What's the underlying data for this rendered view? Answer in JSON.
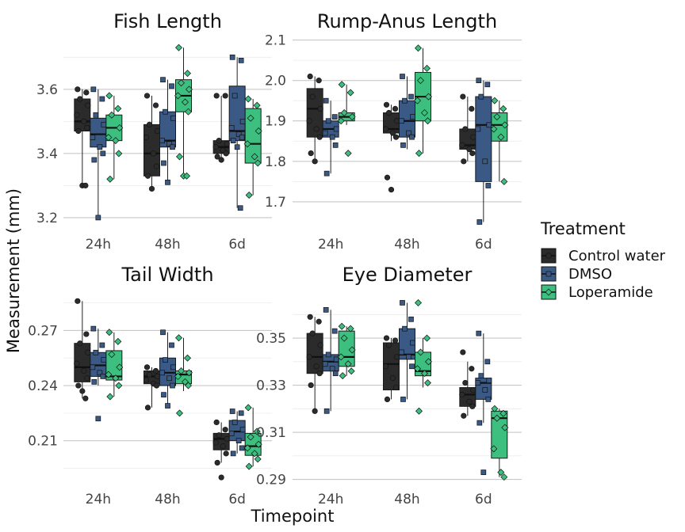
{
  "chart_data": {
    "type": "boxplot",
    "xlabel": "Timepoint",
    "ylabel": "Measurement (mm)",
    "legend": {
      "title": "Treatment",
      "position": "right",
      "entries": [
        {
          "name": "Control water",
          "color": "#2b2b2b",
          "marker": "circle"
        },
        {
          "name": "DMSO",
          "color": "#3a5a85",
          "marker": "square"
        },
        {
          "name": "Loperamide",
          "color": "#3dbf80",
          "marker": "diamond"
        }
      ]
    },
    "categories": [
      "24h",
      "48h",
      "6d"
    ],
    "panels": [
      {
        "title": "Fish Length",
        "ylim": [
          3.18,
          3.76
        ],
        "yticks": [
          3.2,
          3.4,
          3.6
        ],
        "ytick_labels": [
          "3.2",
          "3.4",
          "3.6"
        ],
        "minor_yticks": [
          3.3,
          3.5,
          3.7
        ],
        "groups": [
          {
            "category": "24h",
            "treatment": "Control water",
            "min": 3.3,
            "q1": 3.47,
            "median": 3.5,
            "q3": 3.57,
            "max": 3.6,
            "points": [
              3.6,
              3.59,
              3.57,
              3.55,
              3.52,
              3.5,
              3.48,
              3.47,
              3.3,
              3.3
            ]
          },
          {
            "category": "24h",
            "treatment": "DMSO",
            "min": 3.2,
            "q1": 3.42,
            "median": 3.46,
            "q3": 3.51,
            "max": 3.6,
            "points": [
              3.6,
              3.57,
              3.52,
              3.49,
              3.45,
              3.42,
              3.4,
              3.38,
              3.2
            ]
          },
          {
            "category": "24h",
            "treatment": "Loperamide",
            "min": 3.32,
            "q1": 3.44,
            "median": 3.48,
            "q3": 3.52,
            "max": 3.58,
            "points": [
              3.58,
              3.54,
              3.52,
              3.48,
              3.45,
              3.44,
              3.4,
              3.32
            ]
          },
          {
            "category": "48h",
            "treatment": "Control water",
            "min": 3.29,
            "q1": 3.33,
            "median": 3.4,
            "q3": 3.49,
            "max": 3.58,
            "points": [
              3.58,
              3.55,
              3.49,
              3.47,
              3.45,
              3.4,
              3.36,
              3.33,
              3.29
            ]
          },
          {
            "category": "48h",
            "treatment": "DMSO",
            "min": 3.31,
            "q1": 3.42,
            "median": 3.44,
            "q3": 3.53,
            "max": 3.63,
            "points": [
              3.63,
              3.61,
              3.53,
              3.51,
              3.44,
              3.43,
              3.42,
              3.37,
              3.31
            ]
          },
          {
            "category": "48h",
            "treatment": "Loperamide",
            "min": 3.33,
            "q1": 3.53,
            "median": 3.58,
            "q3": 3.63,
            "max": 3.73,
            "points": [
              3.73,
              3.65,
              3.62,
              3.6,
              3.58,
              3.56,
              3.53,
              3.39,
              3.33,
              3.33
            ]
          },
          {
            "category": "6d",
            "treatment": "Control water",
            "min": 3.38,
            "q1": 3.4,
            "median": 3.42,
            "q3": 3.44,
            "max": 3.58,
            "points": [
              3.58,
              3.58,
              3.44,
              3.43,
              3.42,
              3.41,
              3.4,
              3.39,
              3.38
            ]
          },
          {
            "category": "6d",
            "treatment": "DMSO",
            "min": 3.23,
            "q1": 3.44,
            "median": 3.47,
            "q3": 3.61,
            "max": 3.7,
            "points": [
              3.7,
              3.69,
              3.58,
              3.5,
              3.48,
              3.46,
              3.45,
              3.44,
              3.42,
              3.23
            ]
          },
          {
            "category": "6d",
            "treatment": "Loperamide",
            "min": 3.27,
            "q1": 3.37,
            "median": 3.43,
            "q3": 3.54,
            "max": 3.57,
            "points": [
              3.57,
              3.55,
              3.51,
              3.47,
              3.43,
              3.39,
              3.37,
              3.27
            ]
          }
        ]
      },
      {
        "title": "Rump-Anus Length",
        "ylim": [
          1.645,
          2.105
        ],
        "yticks": [
          1.7,
          1.8,
          1.9,
          2.0,
          2.1
        ],
        "ytick_labels": [
          "1.7",
          "1.8",
          "1.9",
          "2.0",
          "2.1"
        ],
        "minor_yticks": [
          1.75,
          1.85,
          1.95,
          2.05
        ],
        "groups": [
          {
            "category": "24h",
            "treatment": "Control water",
            "min": 1.8,
            "q1": 1.86,
            "median": 1.93,
            "q3": 1.98,
            "max": 2.01,
            "points": [
              2.01,
              2.0,
              1.96,
              1.93,
              1.9,
              1.88,
              1.86,
              1.82,
              1.8
            ]
          },
          {
            "category": "24h",
            "treatment": "DMSO",
            "min": 1.77,
            "q1": 1.86,
            "median": 1.88,
            "q3": 1.9,
            "max": 1.95,
            "points": [
              1.95,
              1.91,
              1.9,
              1.88,
              1.87,
              1.86,
              1.84,
              1.77
            ]
          },
          {
            "category": "24h",
            "treatment": "Loperamide",
            "min": 1.89,
            "q1": 1.9,
            "median": 1.91,
            "q3": 1.92,
            "max": 1.99,
            "points": [
              1.99,
              1.97,
              1.92,
              1.91,
              1.9,
              1.82
            ]
          },
          {
            "category": "48h",
            "treatment": "Control water",
            "min": 1.85,
            "q1": 1.87,
            "median": 1.88,
            "q3": 1.92,
            "max": 1.94,
            "points": [
              1.94,
              1.93,
              1.92,
              1.9,
              1.88,
              1.87,
              1.86,
              1.76,
              1.73
            ]
          },
          {
            "category": "48h",
            "treatment": "DMSO",
            "min": 1.83,
            "q1": 1.86,
            "median": 1.9,
            "q3": 1.95,
            "max": 2.01,
            "points": [
              2.01,
              1.96,
              1.95,
              1.91,
              1.9,
              1.87,
              1.86,
              1.84
            ]
          },
          {
            "category": "48h",
            "treatment": "Loperamide",
            "min": 1.82,
            "q1": 1.9,
            "median": 1.96,
            "q3": 2.02,
            "max": 2.08,
            "points": [
              2.08,
              2.03,
              2.0,
              1.96,
              1.95,
              1.92,
              1.9,
              1.82
            ]
          },
          {
            "category": "6d",
            "treatment": "Control water",
            "min": 1.8,
            "q1": 1.83,
            "median": 1.84,
            "q3": 1.88,
            "max": 1.96,
            "points": [
              1.96,
              1.93,
              1.88,
              1.86,
              1.84,
              1.83,
              1.82,
              1.8
            ]
          },
          {
            "category": "6d",
            "treatment": "DMSO",
            "min": 1.65,
            "q1": 1.75,
            "median": 1.89,
            "q3": 1.96,
            "max": 2.0,
            "points": [
              2.0,
              1.99,
              1.96,
              1.89,
              1.88,
              1.8,
              1.74,
              1.65
            ]
          },
          {
            "category": "6d",
            "treatment": "Loperamide",
            "min": 1.75,
            "q1": 1.85,
            "median": 1.89,
            "q3": 1.92,
            "max": 1.95,
            "points": [
              1.95,
              1.93,
              1.91,
              1.89,
              1.88,
              1.86,
              1.75
            ]
          }
        ]
      },
      {
        "title": "Tail Width",
        "ylim": [
          0.187,
          0.287
        ],
        "yticks": [
          0.21,
          0.24,
          0.27
        ],
        "ytick_labels": [
          "0.21",
          "0.24",
          "0.27"
        ],
        "minor_yticks": [
          0.195,
          0.225,
          0.255,
          0.285
        ],
        "groups": [
          {
            "category": "24h",
            "treatment": "Control water",
            "min": 0.233,
            "q1": 0.242,
            "median": 0.25,
            "q3": 0.263,
            "max": 0.286,
            "points": [
              0.286,
              0.268,
              0.263,
              0.258,
              0.252,
              0.248,
              0.244,
              0.24,
              0.237,
              0.233
            ]
          },
          {
            "category": "24h",
            "treatment": "DMSO",
            "min": 0.24,
            "q1": 0.245,
            "median": 0.251,
            "q3": 0.258,
            "max": 0.271,
            "points": [
              0.271,
              0.262,
              0.258,
              0.254,
              0.25,
              0.247,
              0.245,
              0.242,
              0.222
            ]
          },
          {
            "category": "24h",
            "treatment": "Loperamide",
            "min": 0.234,
            "q1": 0.243,
            "median": 0.245,
            "q3": 0.259,
            "max": 0.269,
            "points": [
              0.269,
              0.264,
              0.257,
              0.25,
              0.246,
              0.244,
              0.24,
              0.234
            ]
          },
          {
            "category": "48h",
            "treatment": "Control water",
            "min": 0.228,
            "q1": 0.241,
            "median": 0.245,
            "q3": 0.248,
            "max": 0.25,
            "points": [
              0.25,
              0.248,
              0.246,
              0.245,
              0.243,
              0.241,
              0.24,
              0.228
            ]
          },
          {
            "category": "48h",
            "treatment": "DMSO",
            "min": 0.229,
            "q1": 0.24,
            "median": 0.247,
            "q3": 0.255,
            "max": 0.269,
            "points": [
              0.269,
              0.262,
              0.254,
              0.25,
              0.247,
              0.244,
              0.24,
              0.235,
              0.229
            ]
          },
          {
            "category": "48h",
            "treatment": "Loperamide",
            "min": 0.237,
            "q1": 0.241,
            "median": 0.246,
            "q3": 0.248,
            "max": 0.266,
            "points": [
              0.266,
              0.255,
              0.248,
              0.247,
              0.245,
              0.242,
              0.24,
              0.225
            ]
          },
          {
            "category": "6d",
            "treatment": "Control water",
            "min": 0.198,
            "q1": 0.205,
            "median": 0.211,
            "q3": 0.214,
            "max": 0.22,
            "points": [
              0.22,
              0.216,
              0.213,
              0.211,
              0.209,
              0.207,
              0.203,
              0.198,
              0.19
            ]
          },
          {
            "category": "6d",
            "treatment": "DMSO",
            "min": 0.203,
            "q1": 0.21,
            "median": 0.215,
            "q3": 0.221,
            "max": 0.226,
            "points": [
              0.226,
              0.225,
              0.22,
              0.216,
              0.214,
              0.21,
              0.206,
              0.203
            ]
          },
          {
            "category": "6d",
            "treatment": "Loperamide",
            "min": 0.196,
            "q1": 0.202,
            "median": 0.207,
            "q3": 0.214,
            "max": 0.228,
            "points": [
              0.228,
              0.215,
              0.212,
              0.208,
              0.206,
              0.203,
              0.2,
              0.196
            ]
          }
        ]
      },
      {
        "title": "Eye Diameter",
        "ylim": [
          0.2885,
          0.3665
        ],
        "yticks": [
          0.29,
          0.31,
          0.33,
          0.35
        ],
        "ytick_labels": [
          "0.29",
          "0.31",
          "0.33",
          "0.35"
        ],
        "minor_yticks": [
          0.3,
          0.32,
          0.34,
          0.36
        ],
        "groups": [
          {
            "category": "24h",
            "treatment": "Control water",
            "min": 0.319,
            "q1": 0.335,
            "median": 0.342,
            "q3": 0.352,
            "max": 0.359,
            "points": [
              0.359,
              0.357,
              0.352,
              0.347,
              0.342,
              0.338,
              0.335,
              0.33,
              0.319
            ]
          },
          {
            "category": "24h",
            "treatment": "DMSO",
            "min": 0.319,
            "q1": 0.336,
            "median": 0.34,
            "q3": 0.343,
            "max": 0.362,
            "points": [
              0.362,
              0.353,
              0.343,
              0.341,
              0.339,
              0.337,
              0.335,
              0.319
            ]
          },
          {
            "category": "24h",
            "treatment": "Loperamide",
            "min": 0.334,
            "q1": 0.338,
            "median": 0.342,
            "q3": 0.353,
            "max": 0.355,
            "points": [
              0.355,
              0.354,
              0.35,
              0.345,
              0.342,
              0.339,
              0.336,
              0.334
            ]
          },
          {
            "category": "48h",
            "treatment": "Control water",
            "min": 0.324,
            "q1": 0.328,
            "median": 0.339,
            "q3": 0.348,
            "max": 0.35,
            "points": [
              0.35,
              0.349,
              0.347,
              0.342,
              0.338,
              0.333,
              0.329,
              0.324
            ]
          },
          {
            "category": "48h",
            "treatment": "DMSO",
            "min": 0.324,
            "q1": 0.341,
            "median": 0.343,
            "q3": 0.354,
            "max": 0.365,
            "points": [
              0.365,
              0.358,
              0.354,
              0.348,
              0.344,
              0.342,
              0.338,
              0.324
            ]
          },
          {
            "category": "48h",
            "treatment": "Loperamide",
            "min": 0.329,
            "q1": 0.334,
            "median": 0.336,
            "q3": 0.344,
            "max": 0.35,
            "points": [
              0.365,
              0.35,
              0.344,
              0.34,
              0.337,
              0.335,
              0.331,
              0.319
            ]
          },
          {
            "category": "6d",
            "treatment": "Control water",
            "min": 0.317,
            "q1": 0.321,
            "median": 0.326,
            "q3": 0.329,
            "max": 0.34,
            "points": [
              0.344,
              0.337,
              0.331,
              0.328,
              0.326,
              0.323,
              0.321,
              0.317
            ]
          },
          {
            "category": "6d",
            "treatment": "DMSO",
            "min": 0.314,
            "q1": 0.324,
            "median": 0.331,
            "q3": 0.333,
            "max": 0.352,
            "points": [
              0.352,
              0.34,
              0.334,
              0.332,
              0.331,
              0.328,
              0.324,
              0.314,
              0.293
            ]
          },
          {
            "category": "6d",
            "treatment": "Loperamide",
            "min": 0.291,
            "q1": 0.299,
            "median": 0.316,
            "q3": 0.319,
            "max": 0.32,
            "points": [
              0.32,
              0.318,
              0.316,
              0.312,
              0.303,
              0.293,
              0.291
            ]
          }
        ]
      }
    ]
  }
}
